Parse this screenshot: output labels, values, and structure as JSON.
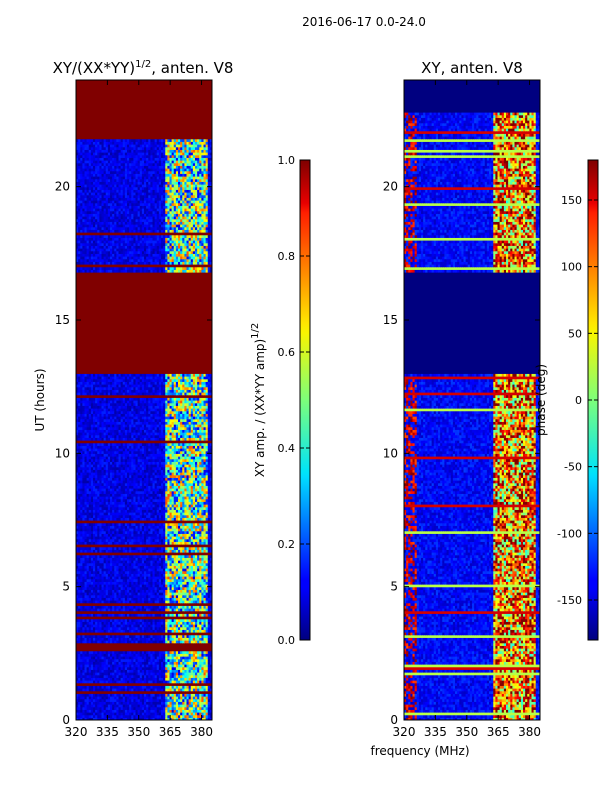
{
  "figure": {
    "suptitle": "2016-06-17 0.0-24.0"
  },
  "chart_data": [
    {
      "type": "heatmap",
      "title": "XY/(XX*YY)",
      "title_superscript": "1/2",
      "title_suffix": ", anten. V8",
      "xlabel": "",
      "ylabel": "UT (hours)",
      "xlim": [
        320,
        385
      ],
      "ylim": [
        0,
        24
      ],
      "xticks": [
        320,
        335,
        350,
        365,
        380
      ],
      "yticks": [
        0,
        5,
        10,
        15,
        20
      ],
      "colorbar": {
        "label": "XY amp. / (XX*YY amp)",
        "label_superscript": "1/2",
        "range": [
          0.0,
          1.0
        ],
        "ticks": [
          "0.0",
          "0.2",
          "0.4",
          "0.6",
          "0.8",
          "1.0"
        ],
        "colormap": "jet"
      },
      "flagged_hours": [
        [
          13.0,
          16.8
        ],
        [
          21.8,
          24.0
        ]
      ],
      "flag_value": 1.0,
      "background_value": 0.1,
      "active_band_mhz": [
        362,
        382
      ],
      "active_band_value": 0.45
    },
    {
      "type": "heatmap",
      "title": "XY, anten. V8",
      "xlabel": "frequency (MHz)",
      "ylabel": "",
      "xlim": [
        320,
        385
      ],
      "ylim": [
        0,
        24
      ],
      "xticks": [
        320,
        335,
        350,
        365,
        380
      ],
      "yticks": [
        0,
        5,
        10,
        15,
        20
      ],
      "colorbar": {
        "label": "phase (deg)",
        "range": [
          -180,
          180
        ],
        "ticks": [
          "-150",
          "-100",
          "-50",
          "0",
          "50",
          "100",
          "150"
        ],
        "colormap": "jet"
      },
      "flagged_hours": [
        [
          13.0,
          16.8
        ],
        [
          22.8,
          24.0
        ]
      ],
      "flag_value": -180,
      "background_value": -135,
      "active_band_mhz": [
        362,
        382
      ],
      "active_band_value": 90
    }
  ],
  "colors": {
    "jet_dark_red": "#800000",
    "jet_dark_blue": "#00007f"
  }
}
